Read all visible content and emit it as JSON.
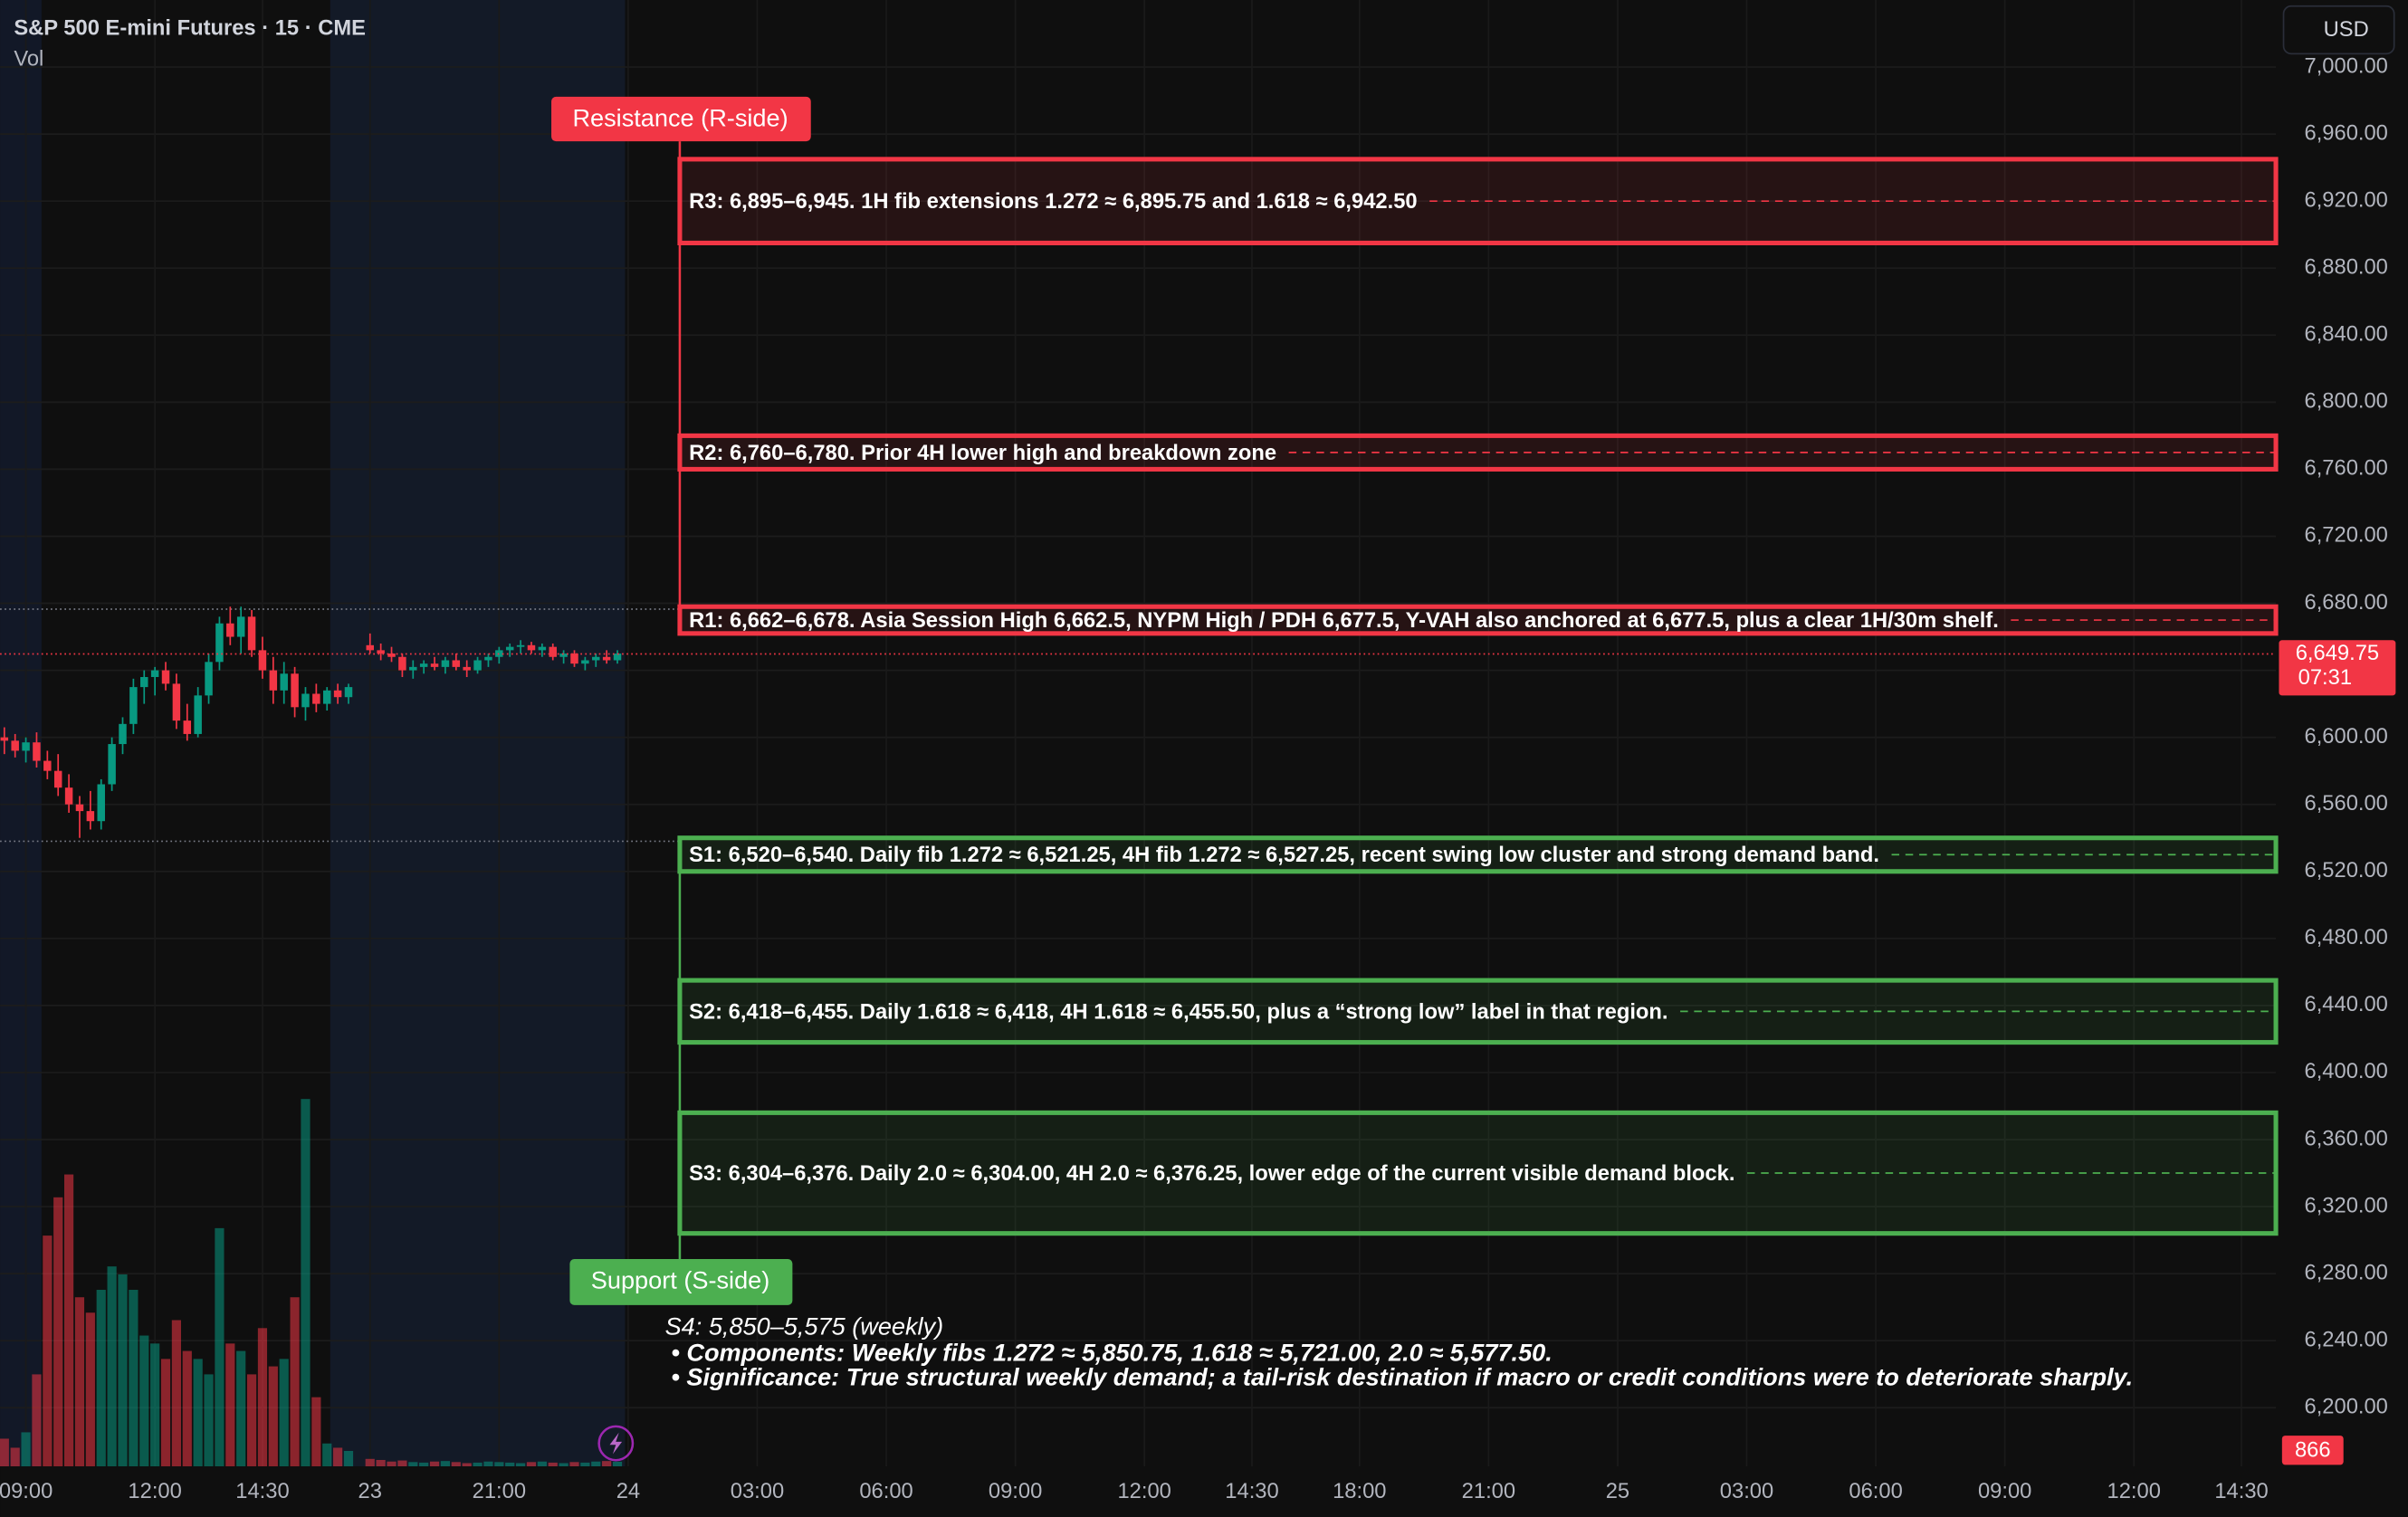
{
  "chart_data": {
    "type": "candlestick",
    "title": "S&P 500 E-mini Futures · 15 · CME",
    "volume_label": "Vol",
    "currency": "USD",
    "up_color": "#089981",
    "down_color": "#f23645",
    "x": [
      8.5,
      8.75,
      9,
      9.25,
      9.5,
      9.75,
      10,
      10.25,
      10.5,
      10.75,
      11,
      11.25,
      11.5,
      11.75,
      12,
      12.25,
      12.5,
      12.75,
      13,
      13.25,
      13.5,
      13.75,
      14,
      14.25,
      14.5,
      14.75,
      15,
      15.25,
      15.5,
      15.75,
      16,
      16.25,
      16.5,
      17,
      17.25,
      17.5,
      17.75,
      18,
      18.25,
      18.5,
      18.75,
      19,
      19.25,
      19.5,
      19.75,
      20,
      20.25,
      20.5,
      20.75,
      21,
      21.25,
      21.5,
      21.75,
      22,
      22.25,
      22.5,
      22.75
    ],
    "open": [
      6600,
      6598,
      6592,
      6597,
      6586,
      6580,
      6570,
      6560,
      6556,
      6550,
      6572,
      6596,
      6608,
      6630,
      6636,
      6640,
      6632,
      6610,
      6602,
      6625,
      6645,
      6668,
      6660,
      6672,
      6652,
      6640,
      6628,
      6638,
      6618,
      6626,
      6620,
      6628,
      6624,
      6655,
      6652,
      6650,
      6648,
      6640,
      6642,
      6644,
      6642,
      6646,
      6642,
      6640,
      6646,
      6648,
      6652,
      6654,
      6655,
      6652,
      6654,
      6648,
      6650,
      6644,
      6646,
      6648,
      6646
    ],
    "high": [
      6606,
      6602,
      6600,
      6603,
      6592,
      6590,
      6578,
      6565,
      6568,
      6575,
      6600,
      6612,
      6635,
      6640,
      6642,
      6645,
      6638,
      6620,
      6630,
      6650,
      6672,
      6678,
      6678,
      6676,
      6660,
      6648,
      6645,
      6642,
      6630,
      6632,
      6630,
      6632,
      6632,
      6662,
      6656,
      6654,
      6650,
      6646,
      6646,
      6648,
      6648,
      6650,
      6646,
      6648,
      6650,
      6654,
      6656,
      6658,
      6657,
      6656,
      6656,
      6652,
      6652,
      6648,
      6650,
      6652,
      6652
    ],
    "low": [
      6590,
      6588,
      6585,
      6582,
      6575,
      6565,
      6555,
      6540,
      6545,
      6545,
      6568,
      6590,
      6602,
      6620,
      6625,
      6628,
      6605,
      6598,
      6600,
      6620,
      6640,
      6655,
      6650,
      6648,
      6635,
      6620,
      6620,
      6612,
      6610,
      6615,
      6616,
      6620,
      6620,
      6650,
      6646,
      6645,
      6636,
      6635,
      6638,
      6640,
      6638,
      6640,
      6636,
      6638,
      6642,
      6644,
      6648,
      6650,
      6650,
      6648,
      6646,
      6644,
      6642,
      6640,
      6642,
      6644,
      6644
    ],
    "close": [
      6598,
      6592,
      6597,
      6586,
      6580,
      6570,
      6560,
      6556,
      6550,
      6572,
      6596,
      6608,
      6630,
      6636,
      6640,
      6632,
      6610,
      6602,
      6625,
      6645,
      6668,
      6660,
      6672,
      6652,
      6640,
      6628,
      6638,
      6618,
      6626,
      6620,
      6628,
      6624,
      6630,
      6652,
      6650,
      6648,
      6640,
      6642,
      6644,
      6642,
      6646,
      6642,
      6640,
      6646,
      6648,
      6652,
      6654,
      6655,
      6652,
      6654,
      6648,
      6650,
      6644,
      6646,
      6648,
      6646,
      6650
    ],
    "volume": [
      5200,
      3500,
      6400,
      17300,
      43400,
      50600,
      54900,
      31800,
      28900,
      33200,
      37600,
      36100,
      33200,
      24600,
      23100,
      20200,
      27500,
      21700,
      20200,
      17300,
      44800,
      23100,
      21700,
      17300,
      26000,
      18800,
      20200,
      31800,
      69100,
      13000,
      4300,
      3500,
      2900,
      1400,
      1200,
      900,
      1100,
      800,
      700,
      900,
      1000,
      800,
      600,
      700,
      900,
      800,
      700,
      600,
      800,
      900,
      700,
      600,
      800,
      700,
      900,
      1000,
      866
    ],
    "volume_ylim": [
      0,
      80000
    ],
    "xlim": [
      8.4,
      61.3
    ],
    "xticks": [
      {
        "value": 9,
        "label": "09:00"
      },
      {
        "value": 12,
        "label": "12:00"
      },
      {
        "value": 14.5,
        "label": "14:30"
      },
      {
        "value": 17,
        "label": "23"
      },
      {
        "value": 20,
        "label": "21:00"
      },
      {
        "value": 23,
        "label": "24"
      },
      {
        "value": 26,
        "label": "03:00"
      },
      {
        "value": 29,
        "label": "06:00"
      },
      {
        "value": 32,
        "label": "09:00"
      },
      {
        "value": 35,
        "label": "12:00"
      },
      {
        "value": 37.5,
        "label": "14:30"
      },
      {
        "value": 40,
        "label": "18:00"
      },
      {
        "value": 43,
        "label": "21:00"
      },
      {
        "value": 46,
        "label": "25"
      },
      {
        "value": 49,
        "label": "03:00"
      },
      {
        "value": 52,
        "label": "06:00"
      },
      {
        "value": 55,
        "label": "09:00"
      },
      {
        "value": 58,
        "label": "12:00"
      },
      {
        "value": 60.5,
        "label": "14:30"
      }
    ],
    "ylim": [
      6165,
      7040
    ],
    "yticks": [
      {
        "value": 7000,
        "label": "7,000.00"
      },
      {
        "value": 6960,
        "label": "6,960.00"
      },
      {
        "value": 6920,
        "label": "6,920.00"
      },
      {
        "value": 6880,
        "label": "6,880.00"
      },
      {
        "value": 6840,
        "label": "6,840.00"
      },
      {
        "value": 6800,
        "label": "6,800.00"
      },
      {
        "value": 6760,
        "label": "6,760.00"
      },
      {
        "value": 6720,
        "label": "6,720.00"
      },
      {
        "value": 6680,
        "label": "6,680.00"
      },
      {
        "value": 6640,
        "label": "6,640.00"
      },
      {
        "value": 6600,
        "label": "6,600.00"
      },
      {
        "value": 6560,
        "label": "6,560.00"
      },
      {
        "value": 6520,
        "label": "6,520.00"
      },
      {
        "value": 6480,
        "label": "6,480.00"
      },
      {
        "value": 6440,
        "label": "6,440.00"
      },
      {
        "value": 6400,
        "label": "6,400.00"
      },
      {
        "value": 6360,
        "label": "6,360.00"
      },
      {
        "value": 6320,
        "label": "6,320.00"
      },
      {
        "value": 6280,
        "label": "6,280.00"
      },
      {
        "value": 6240,
        "label": "6,240.00"
      },
      {
        "value": 6200,
        "label": "6,200.00"
      }
    ],
    "grid": true,
    "last_price": {
      "value": 6649.75,
      "label": "6,649.75"
    },
    "countdown": "07:31",
    "session_levels": [
      6676.5,
      6538
    ],
    "zone_x_start": 24.2,
    "zones": [
      {
        "label": "R3: 6,895–6,945. 1H fib extensions 1.272 ≈ 6,895.75 and 1.618 ≈ 6,942.50",
        "low": 6895,
        "high": 6945,
        "color": "#f23645"
      },
      {
        "label": "R2: 6,760–6,780. Prior 4H lower high and breakdown zone",
        "low": 6760,
        "high": 6780,
        "color": "#f23645"
      },
      {
        "label": "R1: 6,662–6,678. Asia Session High 6,662.5, NYPM High / PDH 6,677.5, Y-VAH also anchored at 6,677.5, plus a clear 1H/30m shelf.",
        "low": 6662,
        "high": 6678,
        "color": "#f23645"
      },
      {
        "label": "S1: 6,520–6,540. Daily fib 1.272 ≈ 6,521.25, 4H fib 1.272 ≈ 6,527.25, recent swing low cluster and strong demand band.",
        "low": 6520,
        "high": 6540,
        "color": "#4caf50"
      },
      {
        "label": "S2: 6,418–6,455. Daily 1.618 ≈ 6,418, 4H 1.618 ≈ 6,455.50, plus a “strong low” label in that region.",
        "low": 6418,
        "high": 6455,
        "color": "#4caf50"
      },
      {
        "label": "S3: 6,304–6,376. Daily 2.0 ≈ 6,304.00, 4H 2.0 ≈ 6,376.25, lower edge of the current visible demand block.",
        "low": 6304,
        "high": 6376,
        "color": "#4caf50"
      }
    ],
    "resistance_label": "Resistance (R-side)",
    "support_label": "Support (S-side)",
    "note": {
      "title": "S4: 5,850–5,575 (weekly)",
      "lines": [
        "• Components: Weekly fibs 1.272 ≈ 5,850.75, 1.618 ≈ 5,721.00, 2.0 ≈ 5,577.50.",
        "• Significance: True structural weekly demand; a tail-risk destination if macro or credit conditions were to deteriorate sharply."
      ]
    }
  }
}
